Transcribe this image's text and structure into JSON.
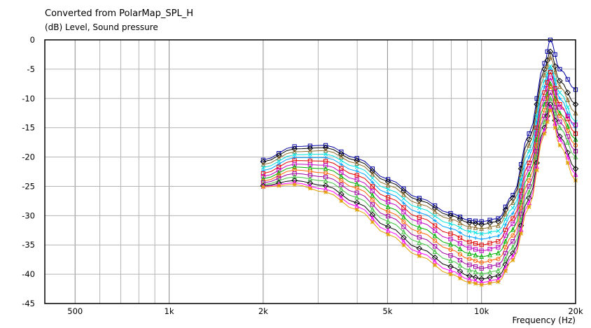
{
  "chart_data": {
    "type": "line",
    "title": "Converted from PolarMap_SPL_H",
    "ylabel": "(dB)  Level, Sound pressure",
    "xlabel": "Frequency  (Hz)",
    "x_scale": "log",
    "xlim": [
      400,
      20000
    ],
    "ylim": [
      -45,
      0
    ],
    "grid": true,
    "x_tick_labels": [
      {
        "value": 500,
        "label": "500"
      },
      {
        "value": 1000,
        "label": "1k"
      },
      {
        "value": 2000,
        "label": "2k"
      },
      {
        "value": 5000,
        "label": "5k"
      },
      {
        "value": 10000,
        "label": "10k"
      },
      {
        "value": 20000,
        "label": "20k"
      }
    ],
    "y_ticks": [
      0,
      -5,
      -10,
      -15,
      -20,
      -25,
      -30,
      -35,
      -40,
      -45
    ],
    "x": [
      2000,
      2520,
      3170,
      3990,
      5020,
      6320,
      7960,
      9150,
      10000,
      11300,
      12600,
      14200,
      15900,
      16600,
      17800,
      20000
    ],
    "series": [
      {
        "color": "#0000a0",
        "marker": "square",
        "values": [
          -20.5,
          -18.2,
          -18.0,
          -20.2,
          -23.8,
          -27.0,
          -29.6,
          -30.8,
          -31.0,
          -30.5,
          -26.5,
          -16.0,
          -4.0,
          0.0,
          -5.0,
          -8.5
        ]
      },
      {
        "color": "#000000",
        "marker": "diamond",
        "values": [
          -20.8,
          -18.6,
          -18.4,
          -20.6,
          -24.2,
          -27.4,
          -30.0,
          -31.2,
          -31.5,
          -31.0,
          -27.0,
          -17.0,
          -5.0,
          -2.0,
          -7.0,
          -11.0
        ]
      },
      {
        "color": "#8a6a2a",
        "marker": "triangle",
        "values": [
          -21.3,
          -19.1,
          -18.9,
          -21.1,
          -24.8,
          -28.0,
          -30.6,
          -31.9,
          -32.2,
          -31.7,
          -27.8,
          -18.0,
          -6.0,
          -3.0,
          -8.0,
          -12.5
        ]
      },
      {
        "color": "#00e0e0",
        "marker": "x",
        "values": [
          -21.8,
          -19.6,
          -19.5,
          -21.7,
          -25.5,
          -28.7,
          -31.4,
          -32.7,
          -33.1,
          -32.6,
          -28.7,
          -19.0,
          -7.0,
          -4.5,
          -9.0,
          -14.0
        ]
      },
      {
        "color": "#00a0ff",
        "marker": "cross",
        "values": [
          -22.3,
          -20.1,
          -20.1,
          -22.4,
          -26.2,
          -29.5,
          -32.2,
          -33.6,
          -34.0,
          -33.5,
          -29.6,
          -20.0,
          -8.0,
          -5.0,
          -10.0,
          -15.0
        ]
      },
      {
        "color": "#e00000",
        "marker": "square",
        "values": [
          -22.8,
          -20.6,
          -20.7,
          -23.1,
          -26.9,
          -30.3,
          -33.1,
          -34.5,
          -35.0,
          -34.4,
          -30.5,
          -21.0,
          -9.0,
          -5.5,
          -11.0,
          -16.0
        ]
      },
      {
        "color": "#c000c0",
        "marker": "square",
        "values": [
          -23.3,
          -21.2,
          -21.4,
          -23.9,
          -27.7,
          -31.1,
          -34.0,
          -35.5,
          -36.0,
          -35.4,
          -31.4,
          -22.0,
          -10.0,
          -6.5,
          -11.5,
          -14.5
        ]
      },
      {
        "color": "#00b000",
        "marker": "triangle",
        "values": [
          -23.7,
          -21.7,
          -22.0,
          -24.6,
          -28.5,
          -32.0,
          -34.9,
          -36.5,
          -37.0,
          -36.4,
          -32.4,
          -23.0,
          -11.0,
          -7.5,
          -12.5,
          -17.0
        ]
      },
      {
        "color": "#ff6000",
        "marker": "circle",
        "values": [
          -24.1,
          -22.2,
          -22.7,
          -25.3,
          -29.3,
          -32.8,
          -35.8,
          -37.4,
          -38.0,
          -37.4,
          -33.4,
          -24.0,
          -12.0,
          -8.0,
          -13.0,
          -18.0
        ]
      },
      {
        "color": "#a000a0",
        "marker": "square",
        "values": [
          -24.4,
          -22.8,
          -23.4,
          -26.1,
          -30.1,
          -33.7,
          -36.8,
          -38.4,
          -39.0,
          -38.4,
          -34.4,
          -25.0,
          -13.0,
          -9.0,
          -14.0,
          -19.0
        ]
      },
      {
        "color": "#40c040",
        "marker": "triangle",
        "values": [
          -24.7,
          -23.4,
          -24.1,
          -26.9,
          -31.0,
          -34.6,
          -37.7,
          -39.3,
          -39.9,
          -39.4,
          -35.4,
          -26.0,
          -14.0,
          -10.0,
          -15.0,
          -20.0
        ]
      },
      {
        "color": "#000000",
        "marker": "diamond",
        "values": [
          -24.9,
          -24.0,
          -24.9,
          -27.8,
          -31.9,
          -35.6,
          -38.7,
          -40.3,
          -40.8,
          -40.3,
          -36.4,
          -27.0,
          -15.0,
          -11.0,
          -16.5,
          -22.0
        ]
      },
      {
        "color": "#ff00ff",
        "marker": "triangle",
        "values": [
          -25.0,
          -24.4,
          -25.5,
          -28.4,
          -32.6,
          -36.3,
          -39.4,
          -40.9,
          -41.4,
          -40.9,
          -37.0,
          -27.8,
          -15.5,
          -11.5,
          -17.0,
          -23.0
        ]
      },
      {
        "color": "#e0a000",
        "marker": "star",
        "values": [
          -25.1,
          -24.7,
          -26.0,
          -29.0,
          -33.2,
          -36.9,
          -40.0,
          -41.4,
          -41.8,
          -41.3,
          -37.6,
          -28.5,
          -16.0,
          -12.0,
          -18.0,
          -24.0
        ]
      }
    ]
  }
}
